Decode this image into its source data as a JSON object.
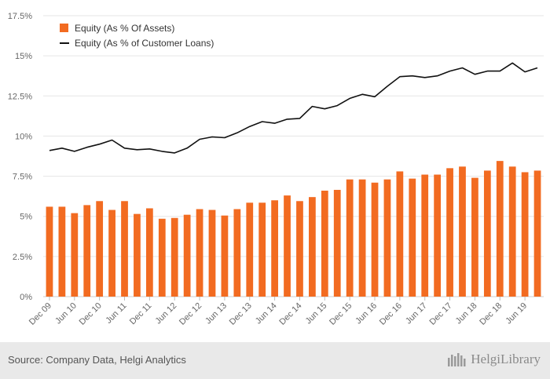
{
  "chart_data": {
    "type": "bar+line",
    "categories": [
      "Dec 09",
      "Mar 10",
      "Jun 10",
      "Sep 10",
      "Dec 10",
      "Mar 11",
      "Jun 11",
      "Sep 11",
      "Dec 11",
      "Mar 12",
      "Jun 12",
      "Sep 12",
      "Dec 12",
      "Mar 13",
      "Jun 13",
      "Sep 13",
      "Dec 13",
      "Mar 14",
      "Jun 14",
      "Sep 14",
      "Dec 14",
      "Mar 15",
      "Jun 15",
      "Sep 15",
      "Dec 15",
      "Mar 16",
      "Jun 16",
      "Sep 16",
      "Dec 16",
      "Mar 17",
      "Jun 17",
      "Sep 17",
      "Dec 17",
      "Mar 18",
      "Jun 18",
      "Sep 18",
      "Dec 18",
      "Mar 19",
      "Jun 19",
      "Sep 19"
    ],
    "x_tick_labels": [
      "Dec 09",
      "Jun 10",
      "Dec 10",
      "Jun 11",
      "Dec 11",
      "Jun 12",
      "Dec 12",
      "Jun 13",
      "Dec 13",
      "Jun 14",
      "Dec 14",
      "Jun 15",
      "Dec 15",
      "Jun 16",
      "Dec 16",
      "Jun 17",
      "Dec 17",
      "Jun 18",
      "Dec 18",
      "Jun 19"
    ],
    "y_tick_labels": [
      "0%",
      "2.5%",
      "5%",
      "7.5%",
      "10%",
      "12.5%",
      "15%",
      "17.5%"
    ],
    "ylim": [
      0,
      17.5
    ],
    "grid": true,
    "legend_position": "top-left",
    "series": [
      {
        "name": "Equity (As % Of Assets)",
        "type": "bar",
        "color": "#f26b21",
        "values": [
          5.6,
          5.6,
          5.2,
          5.7,
          5.95,
          5.4,
          5.95,
          5.15,
          5.5,
          4.85,
          4.9,
          5.1,
          5.45,
          5.4,
          5.05,
          5.45,
          5.85,
          5.85,
          6.0,
          6.3,
          5.95,
          6.2,
          6.6,
          6.65,
          7.3,
          7.3,
          7.1,
          7.3,
          7.8,
          7.35,
          7.6,
          7.6,
          8.0,
          8.1,
          7.4,
          7.85,
          8.45,
          8.1,
          7.75,
          7.85
        ]
      },
      {
        "name": "Equity (As % of Customer Loans)",
        "type": "line",
        "color": "#111111",
        "values": [
          9.1,
          9.25,
          9.05,
          9.3,
          9.5,
          9.75,
          9.25,
          9.15,
          9.2,
          9.05,
          8.95,
          9.25,
          9.8,
          9.95,
          9.9,
          10.2,
          10.6,
          10.9,
          10.8,
          11.05,
          11.1,
          11.85,
          11.7,
          11.9,
          12.35,
          12.6,
          12.45,
          13.1,
          13.7,
          13.75,
          13.65,
          13.75,
          14.05,
          14.25,
          13.85,
          14.05,
          14.05,
          14.55,
          14.0,
          14.25
        ]
      }
    ]
  },
  "footer": {
    "source": "Source: Company Data, Helgi Analytics",
    "brand": "HelgiLibrary"
  }
}
